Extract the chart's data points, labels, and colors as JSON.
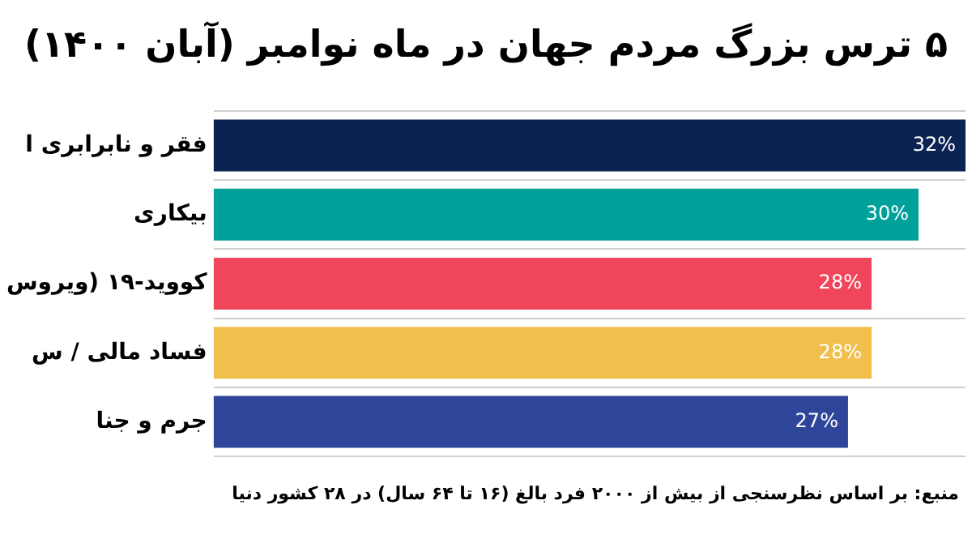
{
  "chart_data": {
    "type": "bar",
    "orientation": "horizontal",
    "title": "۵ ترس بزرگ مردم جهان در ماه نوامبر (آبان ۱۴۰۰)",
    "categories": [
      "فقر و نابرابری ا",
      "بیکاری",
      "کووید-۱۹ (ویروس",
      "فساد مالی / س",
      "جرم و جنا"
    ],
    "values": [
      32,
      30,
      28,
      28,
      27
    ],
    "colors": [
      "#0b2353",
      "#00a19a",
      "#f0455a",
      "#f0bf4c",
      "#2e4599"
    ],
    "value_labels": [
      "32%",
      "30%",
      "28%",
      "28%",
      "27%"
    ],
    "xlim": [
      0,
      32
    ],
    "grid": "y",
    "tick_labels": "y",
    "annotations": [
      "منبع: بر اساس نظرسنجی از بیش از ۲۰۰۰ فرد بالغ (۱۶ تا ۶۴ سال) در ۲۸ کشور دنیا"
    ]
  }
}
